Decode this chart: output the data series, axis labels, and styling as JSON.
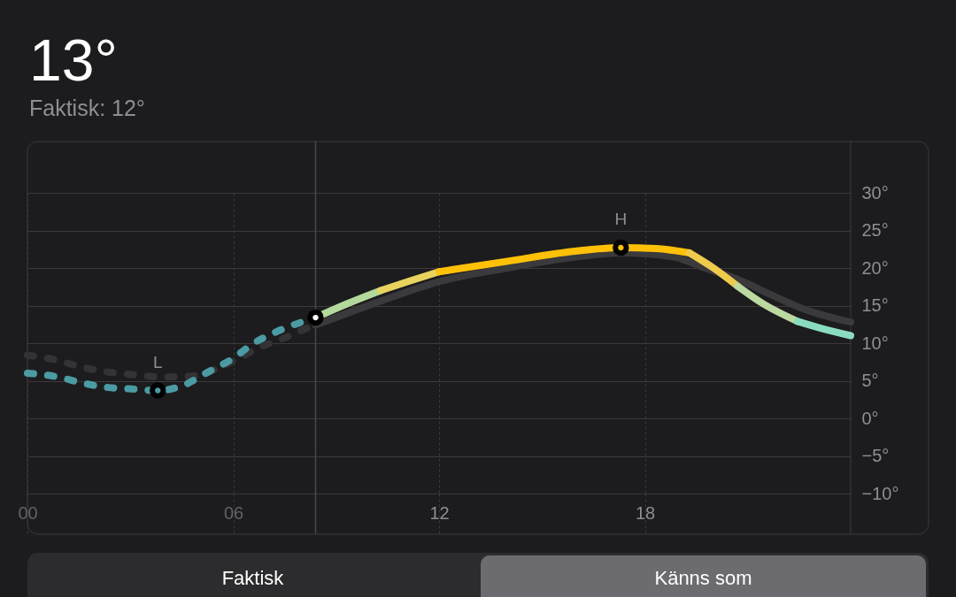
{
  "chart_data": {
    "type": "line",
    "title": "13°",
    "subtitle": "Faktisk: 12°",
    "xlim": [
      0,
      24
    ],
    "xticks": [
      {
        "value": 0,
        "label": "00"
      },
      {
        "value": 6,
        "label": "06"
      },
      12,
      18
    ],
    "ylim": [
      -10,
      30
    ],
    "yticks": [
      {
        "value": -10,
        "label": "−10°"
      },
      {
        "value": -5,
        "label": "−5°"
      },
      {
        "value": 0,
        "label": "0°"
      },
      {
        "value": 5,
        "label": "5°"
      },
      {
        "value": 10,
        "label": "10°"
      },
      {
        "value": 15,
        "label": "15°"
      },
      {
        "value": 20,
        "label": "20°"
      },
      {
        "value": 25,
        "label": "25°"
      },
      {
        "value": 30,
        "label": "30°"
      }
    ],
    "grid": true,
    "ref_lines": [
      {
        "axis": "x",
        "value": 8.4,
        "color": "#48484a"
      }
    ],
    "annotations": [
      {
        "text": "L",
        "x": 3.8,
        "y": 3.7
      },
      {
        "text": "H",
        "x": 17.3,
        "y": 22.7
      },
      "Faktisk",
      "Känns som"
    ],
    "series": [
      {
        "color": "#333335",
        "line_style": "dashed",
        "x": [
          0,
          0.8,
          1.6,
          2.3,
          3.1,
          3.9,
          4.7,
          6.0,
          6.75,
          7.5,
          8.1,
          8.4
        ],
        "values": [
          8.4,
          7.8,
          6.8,
          6.2,
          5.8,
          5.5,
          5.6,
          7.6,
          9.4,
          10.7,
          11.9,
          12.4
        ]
      },
      {
        "color": "#3a3a3c",
        "line_style": "solid",
        "x": [
          8.4,
          10.3,
          12.1,
          14.0,
          15.9,
          17.3,
          18.8,
          19.75,
          20.7,
          21.7,
          22.6,
          24
        ],
        "values": [
          12.4,
          15.6,
          18.3,
          20.0,
          21.4,
          22.0,
          21.5,
          20.0,
          18.5,
          16.4,
          14.6,
          12.8
        ]
      },
      {
        "color": "#4b9ba3",
        "line_style": "dashed",
        "x": [
          0,
          0.9,
          1.6,
          2.35,
          3.05,
          3.8,
          4.6,
          5.2,
          6.0,
          6.6,
          7.3,
          8.4
        ],
        "values": [
          6.0,
          5.5,
          4.7,
          4.1,
          3.9,
          3.7,
          4.5,
          6.0,
          8.0,
          10.0,
          11.6,
          13.4
        ]
      },
      {
        "color": "#b4d99c",
        "line_style": "solid",
        "x": [
          8.4,
          9.3,
          10.3
        ],
        "values": [
          13.4,
          15.2,
          17.0
        ]
      },
      {
        "color": "#e8d35f",
        "line_style": "solid",
        "x": [
          10.3,
          11.1,
          12.0
        ],
        "values": [
          17.0,
          18.2,
          19.5
        ]
      },
      {
        "color": "#ffc107",
        "line_style": "solid",
        "x": [
          12.0,
          14.0,
          15.9,
          17.3,
          18.3,
          19.3
        ],
        "values": [
          19.5,
          20.9,
          22.2,
          22.7,
          22.6,
          22.0
        ]
      },
      {
        "color": "#eecb4c",
        "line_style": "solid",
        "x": [
          19.3,
          20.0,
          20.7
        ],
        "values": [
          22.0,
          20.0,
          17.6
        ]
      },
      {
        "color": "#bcd9a0",
        "line_style": "solid",
        "x": [
          20.7,
          21.5,
          22.45
        ],
        "values": [
          17.6,
          15.1,
          12.9
        ]
      },
      {
        "color": "#8adcc0",
        "line_style": "solid",
        "x": [
          22.45,
          23.2,
          24
        ],
        "values": [
          12.9,
          11.9,
          11.0
        ]
      },
      {
        "type": "scatter",
        "marker": "circle",
        "colors": [
          "#4b9ba3",
          "#ffffff",
          "#ffc107"
        ],
        "x": [
          3.8,
          8.4,
          17.3
        ],
        "values": [
          3.7,
          13.4,
          22.7
        ]
      }
    ]
  }
}
